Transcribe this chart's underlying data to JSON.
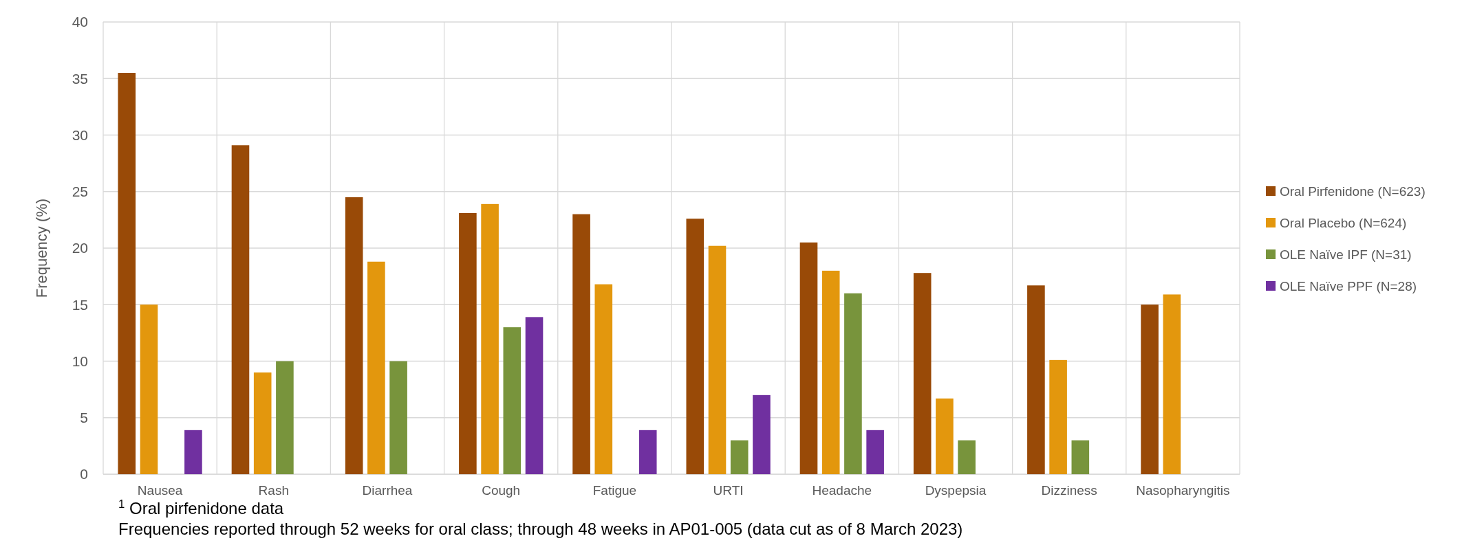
{
  "chart_data": {
    "type": "bar",
    "ylabel": "Frequency (%)",
    "categories": [
      "Nausea",
      "Rash",
      "Diarrhea",
      "Cough",
      "Fatigue",
      "URTI",
      "Headache",
      "Dyspepsia",
      "Dizziness",
      "Nasopharyngitis"
    ],
    "series": [
      {
        "name": "Oral Pirfenidone (N=623)",
        "color": "#994a07",
        "values": [
          35.5,
          29.1,
          24.5,
          23.1,
          23.0,
          22.6,
          20.5,
          17.8,
          16.7,
          15.0
        ]
      },
      {
        "name": "Oral Placebo (N=624)",
        "color": "#e3970d",
        "values": [
          15.0,
          9.0,
          18.8,
          23.9,
          16.8,
          20.2,
          18.0,
          6.7,
          10.1,
          15.9
        ]
      },
      {
        "name": "OLE Naïve IPF (N=31)",
        "color": "#78943c",
        "values": [
          null,
          10.0,
          10.0,
          13.0,
          null,
          3.0,
          16.0,
          3.0,
          3.0,
          null
        ]
      },
      {
        "name": "OLE Naïve PPF (N=28)",
        "color": "#7030a0",
        "values": [
          3.9,
          null,
          null,
          13.9,
          3.9,
          7.0,
          3.9,
          null,
          null,
          null
        ]
      }
    ],
    "ylim": [
      0,
      40
    ],
    "yticks": [
      0,
      5,
      10,
      15,
      20,
      25,
      30,
      35,
      40
    ],
    "grid": true,
    "legend": "right",
    "annotations": [
      "$^{1}$ Oral pirfenidone data",
      "Frequencies reported through 52 weeks for oral class; through 48 weeks in AP01-005 (data cut as of 8 March 2023)"
    ]
  }
}
